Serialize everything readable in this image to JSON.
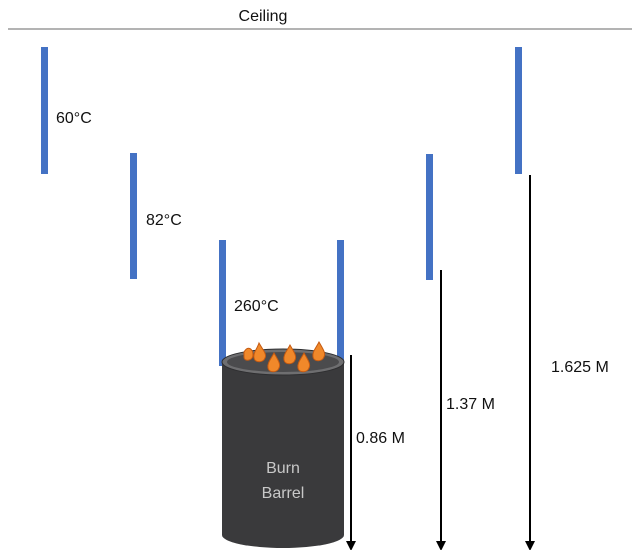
{
  "ceiling_label": "Ceiling",
  "sensors": [
    {
      "id": "sensor-1",
      "temp_label": "60°C"
    },
    {
      "id": "sensor-2",
      "temp_label": "82°C"
    },
    {
      "id": "sensor-3",
      "temp_label": "260°C"
    }
  ],
  "distances": [
    {
      "id": "d1",
      "label": "0.86 M"
    },
    {
      "id": "d2",
      "label": "1.37 M"
    },
    {
      "id": "d3",
      "label": "1.625 M"
    }
  ],
  "barrel": {
    "line1": "Burn",
    "line2": "Barrel"
  },
  "colors": {
    "sensor": "#4472c4",
    "barrel": "#3a3a3c",
    "barrel_rim": "#6e6e70",
    "flame": "#f0882a",
    "flame_stroke": "#c55a11",
    "ceiling": "#9a9a9a",
    "arrow": "#000000"
  }
}
